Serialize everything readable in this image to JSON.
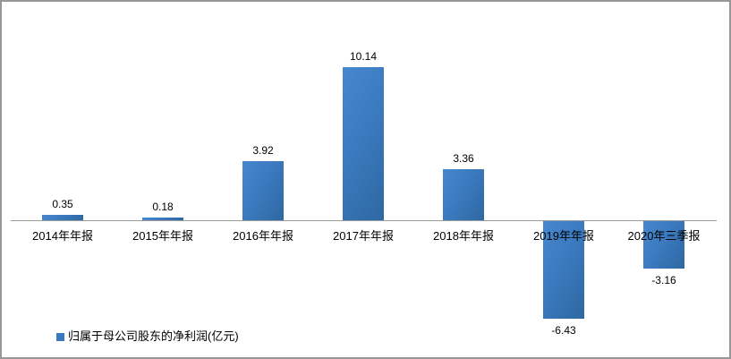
{
  "chart_data": {
    "type": "bar",
    "title": "",
    "categories": [
      "2014年年报",
      "2015年年报",
      "2016年年报",
      "2017年年报",
      "2018年年报",
      "2019年年报",
      "2020年三季报"
    ],
    "values": [
      0.35,
      0.18,
      3.92,
      10.14,
      3.36,
      -6.43,
      -3.16
    ],
    "value_labels": [
      "0.35",
      "0.18",
      "3.92",
      "10.14",
      "3.36",
      "-6.43",
      "-3.16"
    ],
    "series": [
      {
        "name": "归属于母公司股东的净利润(亿元)",
        "values": [
          0.35,
          0.18,
          3.92,
          10.14,
          3.36,
          -6.43,
          -3.16
        ]
      }
    ],
    "xlabel": "",
    "ylabel": "",
    "ylim": [
      -8,
      11.5
    ],
    "grid": false,
    "legend_position": "bottom-left",
    "bar_gradient": [
      "#4787CD",
      "#2E68A2"
    ],
    "bar_color": "#3B7ABF",
    "axis_color": "#9B9B9B"
  },
  "legend": {
    "label": "归属于母公司股东的净利润(亿元)",
    "marker_color": "#3B79BE"
  }
}
